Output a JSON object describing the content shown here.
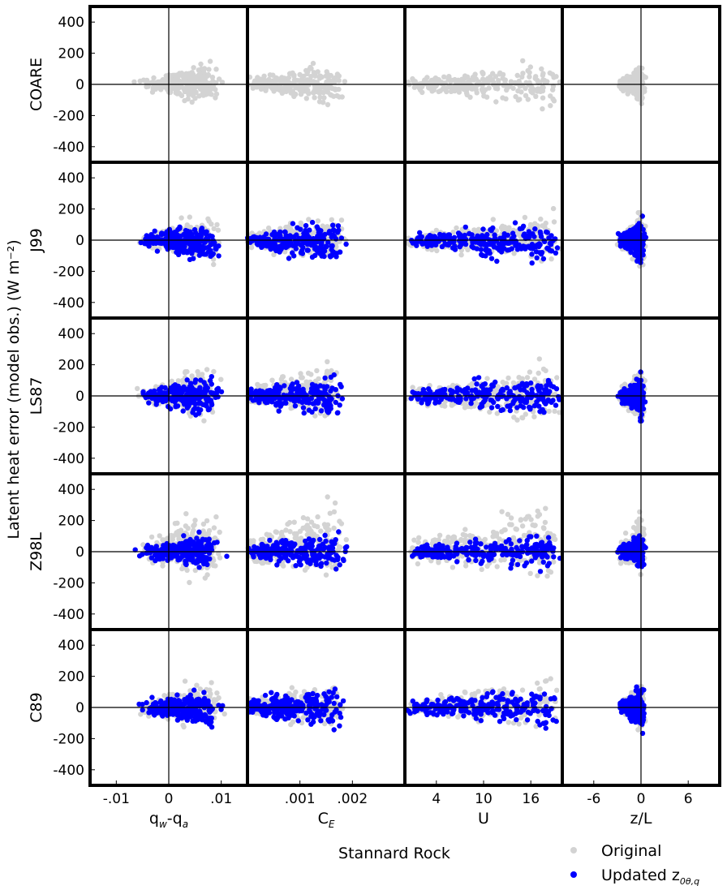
{
  "figure": {
    "ylabel": "Latent heat error (model obs.) (W m⁻²)",
    "site": "Stannard Rock"
  },
  "legend": {
    "original_label": "Original",
    "updated_label": "Updated z",
    "updated_sub": "0θ,q",
    "original_color": "#d3d3d3",
    "updated_color": "#0000ff"
  },
  "chart_data": {
    "type": "scatter",
    "rows": [
      "COARE",
      "J99",
      "LS87",
      "Z98L",
      "C89"
    ],
    "columns": [
      {
        "id": "dq",
        "xlabel": "q",
        "xlabel_sub1": "w",
        "xlabel_mid": "-q",
        "xlabel_sub2": "a",
        "xlim": [
          -0.015,
          0.015
        ],
        "ticks": [
          -0.01,
          0,
          0.01
        ],
        "tick_labels": [
          "-.01",
          "0",
          ".01"
        ]
      },
      {
        "id": "ce",
        "xlabel": "C",
        "xlabel_sub1": "E",
        "xlim": [
          0,
          0.003
        ],
        "ticks": [
          0.001,
          0.002
        ],
        "tick_labels": [
          ".001",
          ".002"
        ]
      },
      {
        "id": "u",
        "xlabel": "U",
        "xlim": [
          0,
          20
        ],
        "ticks": [
          4,
          10,
          16
        ],
        "tick_labels": [
          "4",
          "10",
          "16"
        ]
      },
      {
        "id": "zl",
        "xlabel": "z/L",
        "xlim": [
          -10,
          10
        ],
        "ticks": [
          -6,
          0,
          6
        ],
        "tick_labels": [
          "-6",
          "0",
          "6"
        ]
      }
    ],
    "ylim": [
      -500,
      500
    ],
    "yticks": [
      -400,
      -200,
      0,
      200,
      400
    ],
    "ytick_labels": [
      "-400",
      "-200",
      "0",
      "200",
      "400"
    ],
    "vline_at_zero": {
      "dq": true,
      "zl": true
    },
    "hline_at_zero": true,
    "series": [
      {
        "name": "Original",
        "color": "#d3d3d3",
        "profiles": {
          "COARE": {
            "spread": 45,
            "bias": 0
          },
          "J99": {
            "spread": 55,
            "bias": 15
          },
          "LS87": {
            "spread": 60,
            "bias": 30
          },
          "Z98L": {
            "spread": 75,
            "bias": 70
          },
          "C89": {
            "spread": 50,
            "bias": 25
          }
        }
      },
      {
        "name": "Updated z0θ,q",
        "color": "#0000ff",
        "profiles": {
          "COARE": null,
          "J99": {
            "spread": 45,
            "bias": -15
          },
          "LS87": {
            "spread": 45,
            "bias": 0
          },
          "Z98L": {
            "spread": 40,
            "bias": 0
          },
          "C89": {
            "spread": 45,
            "bias": 0
          }
        }
      }
    ]
  }
}
